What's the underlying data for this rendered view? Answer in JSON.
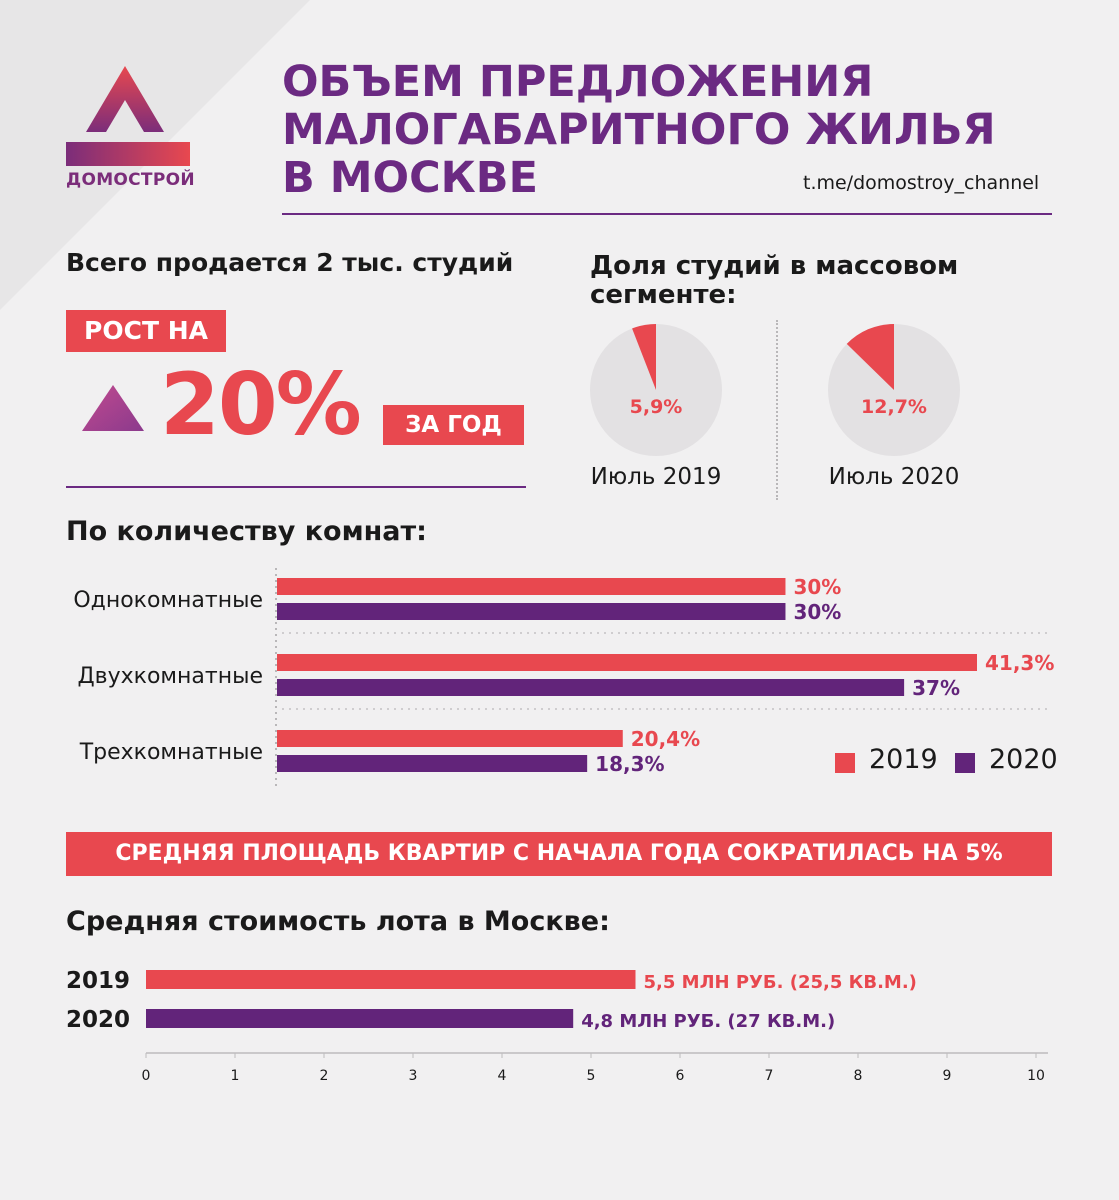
{
  "header": {
    "logo_text": "ДОМОСТРОЙ",
    "title_lines": [
      "ОБЪЕМ ПРЕДЛОЖЕНИЯ",
      "МАЛОГАБАРИТНОГО ЖИЛЬЯ",
      "В МОСКВЕ"
    ],
    "channel": "t.me/domostroy_channel"
  },
  "total_stat": {
    "label": "Всего продается 2 тыс. студий",
    "growth_prefix": "РОСТ НА",
    "growth_value": "20%",
    "growth_suffix": "ЗА ГОД"
  },
  "colors": {
    "red": "#e8484f",
    "purple": "#6b2a82",
    "bar_purple": "#62247a",
    "pie_bg": "#e3e1e3",
    "background": "#f1f0f1"
  },
  "chart_data": [
    {
      "type": "pie",
      "title": "Доля студий в массовом сегменте:",
      "title_lines": [
        "Доля студий в массовом",
        "сегменте:"
      ],
      "pies": [
        {
          "caption": "Июль 2019",
          "value": 5.9,
          "label": "5,9%"
        },
        {
          "caption": "Июль 2020",
          "value": 12.7,
          "label": "12,7%"
        }
      ]
    },
    {
      "type": "bar",
      "orientation": "horizontal",
      "title": "По количеству комнат:",
      "categories": [
        "Однокомнатные",
        "Двухкомнатные",
        "Трехкомнатные"
      ],
      "series": [
        {
          "name": "2019",
          "values": [
            30,
            41.3,
            20.4
          ],
          "labels": [
            "30%",
            "41,3%",
            "20,4%"
          ],
          "color": "#e8484f"
        },
        {
          "name": "2020",
          "values": [
            30,
            37,
            18.3
          ],
          "labels": [
            "30%",
            "37%",
            "18,3%"
          ],
          "color": "#62247a"
        }
      ],
      "xlim": [
        0,
        41.3
      ],
      "legend": "bottom-right"
    },
    {
      "type": "bar",
      "orientation": "horizontal",
      "title": "Средняя стоимость лота в Москве:",
      "categories": [
        "2019",
        "2020"
      ],
      "values": [
        5.5,
        4.8
      ],
      "labels": [
        "5,5 МЛН РУБ. (25,5 КВ.М.)",
        "4,8 МЛН РУБ. (27 КВ.М.)"
      ],
      "colors": [
        "#e8484f",
        "#62247a"
      ],
      "xlim": [
        0,
        10
      ],
      "xticks": [
        "0",
        "1",
        "2",
        "3",
        "4",
        "5",
        "6",
        "7",
        "8",
        "9",
        "10"
      ]
    }
  ],
  "banner": "СРЕДНЯЯ ПЛОЩАДЬ КВАРТИР С НАЧАЛА ГОДА СОКРАТИЛАСЬ НА 5%"
}
